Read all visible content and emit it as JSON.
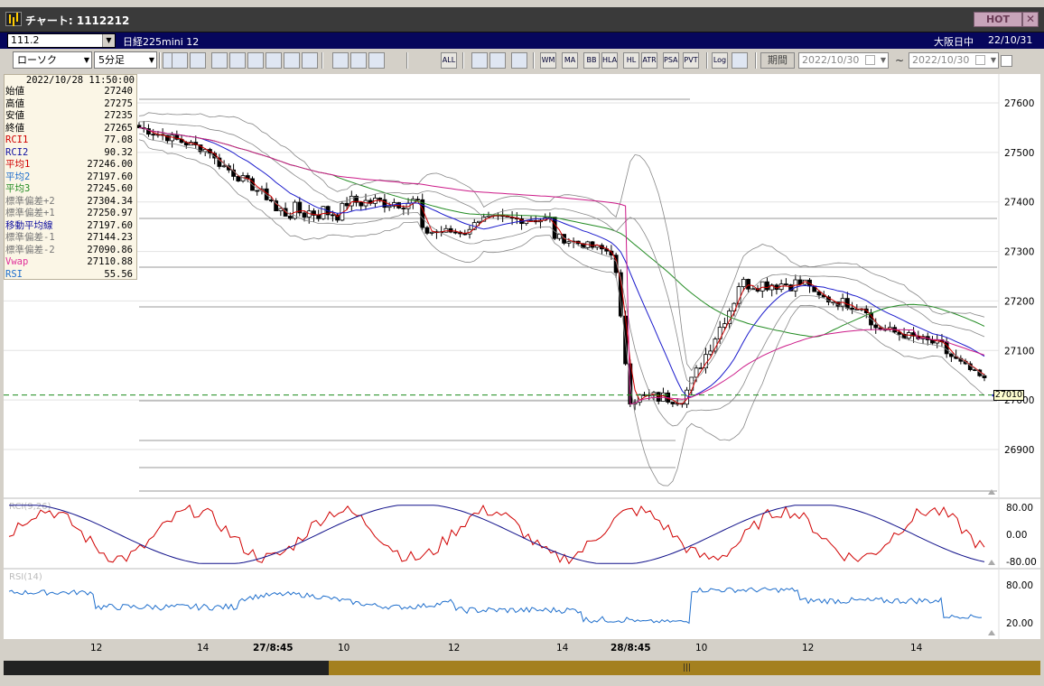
{
  "window": {
    "title": "チャート: 1112212",
    "hot_label": "HOT",
    "close_label": "✕"
  },
  "symbol_bar": {
    "code": "111.2",
    "name": "日経225mini 12",
    "session": "大阪日中",
    "date": "22/10/31"
  },
  "toolbar": {
    "chart_type": "ローソク",
    "interval": "5分足",
    "buttons": [
      "search-icon",
      "compare-icon",
      "add-icon",
      "zoom-icon",
      "bar-icon",
      "candle-icon",
      "grid-icon",
      "pen-icon",
      "cursor-icon",
      "undo-icon",
      "line-tool-icon",
      "text-tool-icon",
      "ALL",
      "settings-icon",
      "brush-icon",
      "palette-icon",
      "WM",
      "MA",
      "BB",
      "HLA",
      "HL",
      "ATR",
      "PSAR",
      "PVT",
      "Log",
      "layout-icon"
    ],
    "period_label": "期間",
    "date_from": "2022/10/30",
    "date_to": "2022/10/30"
  },
  "info_panel": {
    "datetime": "2022/10/28  11:50:00",
    "rows": [
      {
        "k": "始値",
        "v": "27240",
        "color": "#000000"
      },
      {
        "k": "高値",
        "v": "27275",
        "color": "#000000"
      },
      {
        "k": "安値",
        "v": "27235",
        "color": "#000000"
      },
      {
        "k": "終値",
        "v": "27265",
        "color": "#000000"
      },
      {
        "k": "RCI1",
        "v": "77.08",
        "color": "#d00000"
      },
      {
        "k": "RCI2",
        "v": "90.32",
        "color": "#1010a0"
      },
      {
        "k": "平均1",
        "v": "27246.00",
        "color": "#d00000"
      },
      {
        "k": "平均2",
        "v": "27197.60",
        "color": "#1e6ecc"
      },
      {
        "k": "平均3",
        "v": "27245.60",
        "color": "#228b22"
      },
      {
        "k": "標準偏差+2",
        "v": "27304.34",
        "color": "#777777"
      },
      {
        "k": "標準偏差+1",
        "v": "27250.97",
        "color": "#777777"
      },
      {
        "k": "移動平均線",
        "v": "27197.60",
        "color": "#1010a0"
      },
      {
        "k": "標準偏差-1",
        "v": "27144.23",
        "color": "#777777"
      },
      {
        "k": "標準偏差-2",
        "v": "27090.86",
        "color": "#777777"
      },
      {
        "k": "Vwap",
        "v": "27110.88",
        "color": "#e0309a"
      },
      {
        "k": "RSI",
        "v": "55.56",
        "color": "#1e6ecc"
      }
    ]
  },
  "price_axis": {
    "labels": [
      "27600",
      "27500",
      "27400",
      "27300",
      "27200",
      "27100",
      "27000",
      "26900"
    ],
    "current_price": "27010"
  },
  "rci_panel": {
    "label": "RCI(9,26)",
    "axis": [
      "80.00",
      "0.00",
      "-80.00"
    ]
  },
  "rsi_panel": {
    "label": "RSI(14)",
    "axis": [
      "80.00",
      "20.00"
    ]
  },
  "time_axis": [
    "12",
    "14",
    "27/8:45",
    "10",
    "12",
    "14",
    "28/8:45",
    "10",
    "12",
    "14"
  ],
  "colors": {
    "titlebar": "#3a3a3a",
    "symbar": "#06065c",
    "avg1": "#d00000",
    "avg2": "#1a1acc",
    "avg3": "#228b22",
    "vwap": "#cc1a88",
    "rsi": "#1e6ecc",
    "band": "#888888",
    "current_line": "#1a8a1a",
    "scroll_thumb": "#a4801e"
  }
}
